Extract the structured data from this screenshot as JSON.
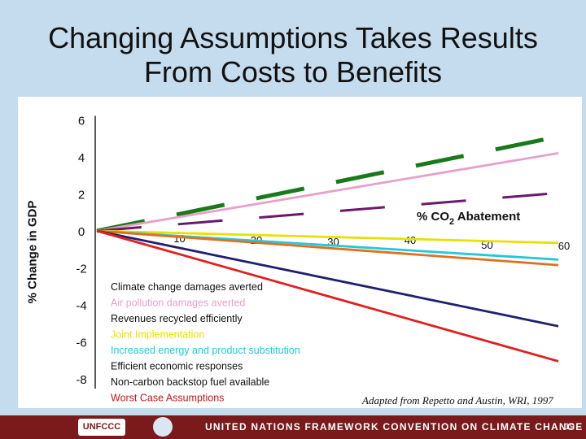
{
  "title": {
    "line1": "Changing Assumptions Takes Results",
    "line2": "From Costs to Benefits"
  },
  "source_note": "Adapted from Repetto and Austin, WRI, 1997",
  "footer": {
    "logo": "UNFCCC",
    "text": "UNITED NATIONS FRAMEWORK CONVENTION ON CLIMATE CHANGE",
    "page_number": "19"
  },
  "chart_data": {
    "type": "line",
    "ylabel": "% Change in GDP",
    "xlabel_main": "% CO",
    "xlabel_sub": "2",
    "xlabel_tail": " Abatement",
    "xlim": [
      0,
      60
    ],
    "ylim": [
      -8,
      6
    ],
    "x_ticks": [
      10,
      20,
      30,
      40,
      50,
      60
    ],
    "y_ticks": [
      6,
      4,
      2,
      0,
      -2,
      -4,
      -6,
      -8
    ],
    "series": [
      {
        "name": "Climate change damages averted",
        "color": "#1a7a1a",
        "style": "dashed-thick",
        "x": [
          0,
          60
        ],
        "y": [
          0,
          5.1
        ]
      },
      {
        "name": "Air pollution damages averted",
        "color": "#e8a0c8",
        "style": "solid",
        "x": [
          0,
          60
        ],
        "y": [
          0,
          4.2
        ]
      },
      {
        "name": "Revenues recycled efficiently",
        "color": "#6a1a6a",
        "style": "dashed",
        "x": [
          0,
          60
        ],
        "y": [
          0,
          2.05
        ]
      },
      {
        "name": "Joint Implementation",
        "color": "#e8e000",
        "style": "solid",
        "x": [
          0,
          60
        ],
        "y": [
          0,
          -0.65
        ]
      },
      {
        "name": "Increased energy and product substitution",
        "color": "#22c8d8",
        "style": "solid",
        "x": [
          0,
          60
        ],
        "y": [
          0,
          -1.55
        ]
      },
      {
        "name": "Efficient economic responses",
        "color": "#e07020",
        "style": "solid",
        "x": [
          0,
          60
        ],
        "y": [
          0,
          -1.85
        ]
      },
      {
        "name": "Non-carbon backstop fuel available",
        "color": "#20206e",
        "style": "solid",
        "x": [
          0,
          60
        ],
        "y": [
          0,
          -5.15
        ]
      },
      {
        "name": "Worst Case Assumptions",
        "color": "#e02020",
        "style": "solid",
        "x": [
          0,
          60
        ],
        "y": [
          0,
          -7.05
        ]
      }
    ]
  }
}
